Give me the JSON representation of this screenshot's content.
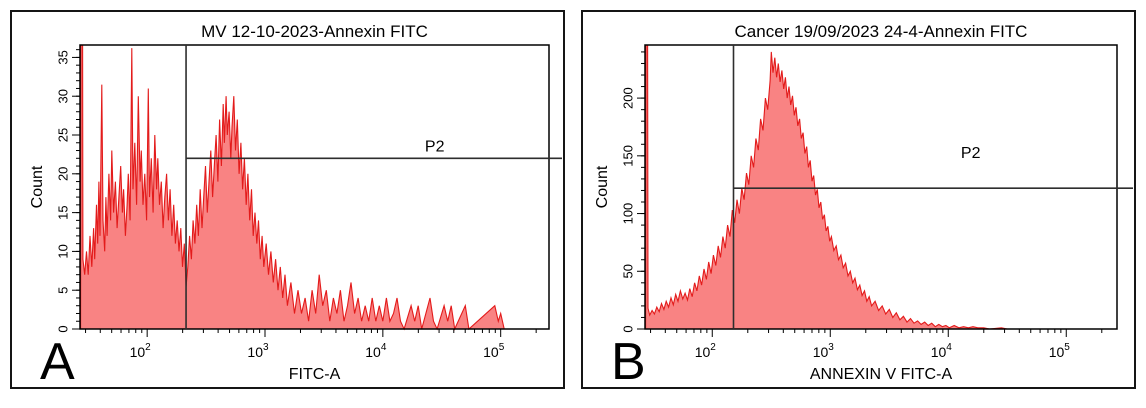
{
  "colors": {
    "histogram_fill": "#f98383",
    "histogram_stroke": "#e31b1b",
    "gate_line": "#2e2e2e",
    "axis": "#000000",
    "text": "#000000",
    "panel_border": "#151515",
    "background": "#ffffff"
  },
  "chart_data": [
    {
      "type": "area",
      "panel_label": "A",
      "title": "MV 12-10-2023-Annexin FITC",
      "xlabel": "FITC-A",
      "ylabel": "Count",
      "xscale": "log",
      "xlim_log10": [
        1.43,
        5.41
      ],
      "xtick_exponents": [
        2,
        3,
        4,
        5
      ],
      "ylim": [
        0,
        36.6
      ],
      "yticks": [
        0,
        5,
        10,
        15,
        20,
        25,
        30,
        35
      ],
      "y_minor_step": 1,
      "grid": false,
      "gate": {
        "label": "P2",
        "x_value": 200,
        "x_log10": 2.33,
        "y_count": 22,
        "label_x_log10": 4.44,
        "label_dy": -7
      },
      "points": [
        [
          1.435,
          0
        ],
        [
          1.438,
          36.6
        ],
        [
          1.452,
          36.6
        ],
        [
          1.455,
          9
        ],
        [
          1.47,
          7
        ],
        [
          1.485,
          10
        ],
        [
          1.5,
          7
        ],
        [
          1.515,
          12
        ],
        [
          1.53,
          8
        ],
        [
          1.545,
          13
        ],
        [
          1.555,
          9
        ],
        [
          1.57,
          16
        ],
        [
          1.58,
          11
        ],
        [
          1.59,
          19
        ],
        [
          1.6,
          12
        ],
        [
          1.615,
          31.5
        ],
        [
          1.625,
          14
        ],
        [
          1.64,
          10
        ],
        [
          1.65,
          17
        ],
        [
          1.66,
          12
        ],
        [
          1.675,
          20
        ],
        [
          1.69,
          14
        ],
        [
          1.7,
          23
        ],
        [
          1.715,
          15
        ],
        [
          1.73,
          19
        ],
        [
          1.745,
          13
        ],
        [
          1.76,
          17
        ],
        [
          1.775,
          21
        ],
        [
          1.79,
          15
        ],
        [
          1.8,
          18
        ],
        [
          1.815,
          12
        ],
        [
          1.83,
          16
        ],
        [
          1.84,
          20
        ],
        [
          1.855,
          14
        ],
        [
          1.87,
          36.2
        ],
        [
          1.88,
          18
        ],
        [
          1.895,
          24
        ],
        [
          1.91,
          16
        ],
        [
          1.925,
          30
        ],
        [
          1.94,
          19
        ],
        [
          1.95,
          23
        ],
        [
          1.965,
          16
        ],
        [
          1.98,
          20
        ],
        [
          1.995,
          14
        ],
        [
          2.01,
          31
        ],
        [
          2.02,
          17
        ],
        [
          2.035,
          22
        ],
        [
          2.05,
          15
        ],
        [
          2.065,
          25
        ],
        [
          2.08,
          18
        ],
        [
          2.09,
          22
        ],
        [
          2.105,
          16
        ],
        [
          2.12,
          19
        ],
        [
          2.135,
          13
        ],
        [
          2.15,
          17
        ],
        [
          2.165,
          20
        ],
        [
          2.18,
          14
        ],
        [
          2.195,
          18
        ],
        [
          2.21,
          12
        ],
        [
          2.225,
          16
        ],
        [
          2.24,
          11
        ],
        [
          2.255,
          14
        ],
        [
          2.27,
          10
        ],
        [
          2.285,
          13
        ],
        [
          2.3,
          8
        ],
        [
          2.315,
          11
        ],
        [
          2.33,
          5.5
        ],
        [
          2.345,
          8
        ],
        [
          2.36,
          12
        ],
        [
          2.375,
          9
        ],
        [
          2.39,
          14
        ],
        [
          2.405,
          11
        ],
        [
          2.42,
          16
        ],
        [
          2.435,
          12
        ],
        [
          2.45,
          18
        ],
        [
          2.465,
          13
        ],
        [
          2.48,
          17
        ],
        [
          2.495,
          21
        ],
        [
          2.51,
          15
        ],
        [
          2.525,
          19
        ],
        [
          2.54,
          23
        ],
        [
          2.555,
          17
        ],
        [
          2.57,
          21
        ],
        [
          2.585,
          25
        ],
        [
          2.6,
          19
        ],
        [
          2.615,
          27
        ],
        [
          2.63,
          21
        ],
        [
          2.645,
          29
        ],
        [
          2.655,
          24
        ],
        [
          2.67,
          30
        ],
        [
          2.68,
          25
        ],
        [
          2.695,
          28
        ],
        [
          2.71,
          22
        ],
        [
          2.72,
          26
        ],
        [
          2.735,
          30
        ],
        [
          2.75,
          23
        ],
        [
          2.765,
          27
        ],
        [
          2.78,
          20
        ],
        [
          2.795,
          24
        ],
        [
          2.81,
          18
        ],
        [
          2.825,
          22
        ],
        [
          2.84,
          16
        ],
        [
          2.855,
          20
        ],
        [
          2.87,
          14
        ],
        [
          2.885,
          18
        ],
        [
          2.9,
          12
        ],
        [
          2.915,
          15
        ],
        [
          2.93,
          11
        ],
        [
          2.945,
          14
        ],
        [
          2.96,
          9
        ],
        [
          2.975,
          12
        ],
        [
          2.99,
          8
        ],
        [
          3.01,
          11
        ],
        [
          3.03,
          7
        ],
        [
          3.05,
          10
        ],
        [
          3.07,
          6
        ],
        [
          3.09,
          9
        ],
        [
          3.11,
          5
        ],
        [
          3.13,
          8
        ],
        [
          3.15,
          4
        ],
        [
          3.17,
          7
        ],
        [
          3.19,
          3
        ],
        [
          3.22,
          6
        ],
        [
          3.25,
          2
        ],
        [
          3.28,
          5
        ],
        [
          3.31,
          2
        ],
        [
          3.34,
          4
        ],
        [
          3.37,
          1
        ],
        [
          3.4,
          5
        ],
        [
          3.43,
          2
        ],
        [
          3.46,
          7
        ],
        [
          3.49,
          3
        ],
        [
          3.52,
          5
        ],
        [
          3.55,
          1
        ],
        [
          3.58,
          4
        ],
        [
          3.61,
          2
        ],
        [
          3.64,
          5
        ],
        [
          3.67,
          1
        ],
        [
          3.7,
          3
        ],
        [
          3.73,
          6
        ],
        [
          3.76,
          2
        ],
        [
          3.79,
          4
        ],
        [
          3.82,
          1
        ],
        [
          3.85,
          3
        ],
        [
          3.88,
          1
        ],
        [
          3.91,
          4
        ],
        [
          3.94,
          1
        ],
        [
          3.97,
          3
        ],
        [
          4.0,
          1
        ],
        [
          4.03,
          4
        ],
        [
          4.06,
          1
        ],
        [
          4.09,
          2
        ],
        [
          4.12,
          4
        ],
        [
          4.15,
          1
        ],
        [
          4.18,
          0
        ],
        [
          4.24,
          3
        ],
        [
          4.27,
          1
        ],
        [
          4.3,
          3
        ],
        [
          4.33,
          0
        ],
        [
          4.4,
          4
        ],
        [
          4.43,
          1
        ],
        [
          4.46,
          0
        ],
        [
          4.52,
          3
        ],
        [
          4.55,
          1
        ],
        [
          4.58,
          3
        ],
        [
          4.61,
          0
        ],
        [
          4.7,
          3
        ],
        [
          4.73,
          0
        ],
        [
          4.95,
          3
        ],
        [
          4.98,
          1
        ],
        [
          5.0,
          2
        ],
        [
          5.03,
          0
        ],
        [
          5.41,
          0
        ]
      ]
    },
    {
      "type": "area",
      "panel_label": "B",
      "title": "Cancer 19/09/2023 24-4-Annexin FITC",
      "xlabel": "ANNEXIN V FITC-A",
      "ylabel": "Count",
      "xscale": "log",
      "xlim_log10": [
        1.43,
        5.43
      ],
      "xtick_exponents": [
        2,
        3,
        4,
        5
      ],
      "ylim": [
        0,
        246
      ],
      "yticks": [
        0,
        50,
        100,
        150,
        200
      ],
      "y_minor_step": 10,
      "grid": false,
      "gate": {
        "label": "P2",
        "x_value": 150,
        "x_log10": 2.18,
        "y_count": 122,
        "label_x_log10": 4.19,
        "label_dy": -30
      },
      "points": [
        [
          1.435,
          0
        ],
        [
          1.438,
          246
        ],
        [
          1.452,
          246
        ],
        [
          1.455,
          18
        ],
        [
          1.47,
          12
        ],
        [
          1.49,
          16
        ],
        [
          1.51,
          13
        ],
        [
          1.53,
          19
        ],
        [
          1.55,
          15
        ],
        [
          1.57,
          22
        ],
        [
          1.59,
          17
        ],
        [
          1.61,
          24
        ],
        [
          1.63,
          19
        ],
        [
          1.65,
          27
        ],
        [
          1.67,
          21
        ],
        [
          1.69,
          30
        ],
        [
          1.71,
          24
        ],
        [
          1.73,
          33
        ],
        [
          1.75,
          26
        ],
        [
          1.77,
          31
        ],
        [
          1.79,
          25
        ],
        [
          1.81,
          35
        ],
        [
          1.83,
          28
        ],
        [
          1.85,
          40
        ],
        [
          1.87,
          33
        ],
        [
          1.89,
          46
        ],
        [
          1.91,
          38
        ],
        [
          1.93,
          52
        ],
        [
          1.95,
          43
        ],
        [
          1.97,
          58
        ],
        [
          1.99,
          48
        ],
        [
          2.01,
          64
        ],
        [
          2.03,
          55
        ],
        [
          2.05,
          72
        ],
        [
          2.07,
          62
        ],
        [
          2.09,
          80
        ],
        [
          2.11,
          70
        ],
        [
          2.13,
          90
        ],
        [
          2.15,
          80
        ],
        [
          2.17,
          103
        ],
        [
          2.19,
          92
        ],
        [
          2.21,
          112
        ],
        [
          2.23,
          100
        ],
        [
          2.25,
          122
        ],
        [
          2.27,
          112
        ],
        [
          2.29,
          135
        ],
        [
          2.31,
          125
        ],
        [
          2.33,
          150
        ],
        [
          2.35,
          140
        ],
        [
          2.37,
          165
        ],
        [
          2.39,
          155
        ],
        [
          2.41,
          182
        ],
        [
          2.43,
          172
        ],
        [
          2.45,
          200
        ],
        [
          2.47,
          190
        ],
        [
          2.49,
          215
        ],
        [
          2.5,
          240
        ],
        [
          2.515,
          222
        ],
        [
          2.53,
          235
        ],
        [
          2.545,
          218
        ],
        [
          2.56,
          230
        ],
        [
          2.575,
          214
        ],
        [
          2.59,
          224
        ],
        [
          2.605,
          208
        ],
        [
          2.62,
          218
        ],
        [
          2.635,
          200
        ],
        [
          2.65,
          210
        ],
        [
          2.665,
          194
        ],
        [
          2.68,
          202
        ],
        [
          2.695,
          185
        ],
        [
          2.71,
          192
        ],
        [
          2.725,
          176
        ],
        [
          2.74,
          182
        ],
        [
          2.755,
          165
        ],
        [
          2.77,
          170
        ],
        [
          2.785,
          152
        ],
        [
          2.8,
          158
        ],
        [
          2.815,
          140
        ],
        [
          2.83,
          146
        ],
        [
          2.845,
          128
        ],
        [
          2.86,
          133
        ],
        [
          2.875,
          116
        ],
        [
          2.89,
          121
        ],
        [
          2.905,
          105
        ],
        [
          2.92,
          110
        ],
        [
          2.935,
          95
        ],
        [
          2.95,
          99
        ],
        [
          2.965,
          85
        ],
        [
          2.98,
          89
        ],
        [
          2.995,
          76
        ],
        [
          3.01,
          80
        ],
        [
          3.03,
          68
        ],
        [
          3.05,
          72
        ],
        [
          3.07,
          60
        ],
        [
          3.09,
          64
        ],
        [
          3.11,
          53
        ],
        [
          3.13,
          57
        ],
        [
          3.15,
          46
        ],
        [
          3.17,
          50
        ],
        [
          3.19,
          40
        ],
        [
          3.21,
          44
        ],
        [
          3.23,
          34
        ],
        [
          3.25,
          38
        ],
        [
          3.27,
          29
        ],
        [
          3.29,
          33
        ],
        [
          3.31,
          24
        ],
        [
          3.33,
          28
        ],
        [
          3.35,
          20
        ],
        [
          3.38,
          24
        ],
        [
          3.41,
          16
        ],
        [
          3.44,
          20
        ],
        [
          3.47,
          13
        ],
        [
          3.5,
          17
        ],
        [
          3.53,
          10
        ],
        [
          3.56,
          14
        ],
        [
          3.59,
          8
        ],
        [
          3.62,
          11
        ],
        [
          3.65,
          6
        ],
        [
          3.68,
          9
        ],
        [
          3.71,
          5
        ],
        [
          3.74,
          7
        ],
        [
          3.77,
          4
        ],
        [
          3.8,
          6
        ],
        [
          3.83,
          3
        ],
        [
          3.86,
          5
        ],
        [
          3.89,
          2
        ],
        [
          3.92,
          4
        ],
        [
          3.95,
          2
        ],
        [
          3.98,
          3
        ],
        [
          4.01,
          1
        ],
        [
          4.05,
          3
        ],
        [
          4.09,
          1
        ],
        [
          4.13,
          2
        ],
        [
          4.17,
          1
        ],
        [
          4.21,
          2
        ],
        [
          4.25,
          1
        ],
        [
          4.3,
          1
        ],
        [
          4.35,
          0
        ],
        [
          4.45,
          1
        ],
        [
          4.5,
          0
        ],
        [
          5.43,
          0
        ]
      ]
    }
  ]
}
